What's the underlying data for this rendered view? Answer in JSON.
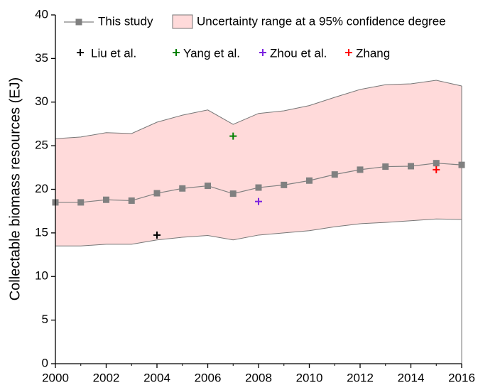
{
  "chart_data": {
    "type": "line",
    "y_label": "Collectable biomass resources (EJ)",
    "x": [
      2000,
      2001,
      2002,
      2003,
      2004,
      2005,
      2006,
      2007,
      2008,
      2009,
      2010,
      2011,
      2012,
      2013,
      2014,
      2015,
      2016
    ],
    "series": [
      {
        "name": "This study",
        "color": "#808080",
        "values": [
          18.5,
          18.5,
          18.8,
          18.7,
          19.55,
          20.1,
          20.4,
          19.5,
          20.2,
          20.5,
          21.0,
          21.7,
          22.25,
          22.6,
          22.65,
          23.0,
          22.8
        ]
      }
    ],
    "band": {
      "name": "Uncertainty range at a 95% confidence degree",
      "color": "#ffdada",
      "upper": [
        25.8,
        26.0,
        26.5,
        26.4,
        27.7,
        28.5,
        29.1,
        27.45,
        28.7,
        29.0,
        29.6,
        30.55,
        31.45,
        32.0,
        32.1,
        32.5,
        31.85
      ],
      "lower": [
        13.5,
        13.5,
        13.7,
        13.7,
        14.2,
        14.5,
        14.7,
        14.2,
        14.75,
        15.0,
        15.25,
        15.7,
        16.05,
        16.2,
        16.4,
        16.6,
        16.55
      ]
    },
    "studies": [
      {
        "name": "Liu et al.",
        "color": "#000000",
        "x": 2004,
        "y": 14.75
      },
      {
        "name": "Yang et al.",
        "color": "#008000",
        "x": 2007,
        "y": 26.1
      },
      {
        "name": "Zhou et al.",
        "color": "#7b22e0",
        "x": 2008,
        "y": 18.6
      },
      {
        "name": "Zhang",
        "color": "#ff0000",
        "x": 2015,
        "y": 22.25
      }
    ],
    "xlim": [
      2000,
      2016
    ],
    "xticks": [
      2000,
      2002,
      2004,
      2006,
      2008,
      2010,
      2012,
      2014,
      2016
    ],
    "ylim": [
      0,
      40
    ],
    "yticks": [
      0,
      5,
      10,
      15,
      20,
      25,
      30,
      35,
      40
    ]
  }
}
